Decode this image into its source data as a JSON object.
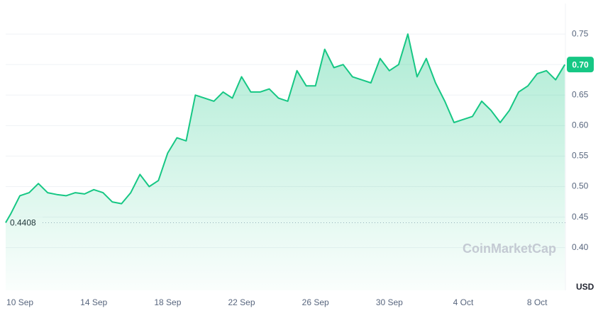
{
  "chart_data": {
    "type": "line",
    "categories": [
      null,
      null,
      "10 Sep",
      null,
      null,
      null,
      null,
      null,
      null,
      null,
      "14 Sep",
      null,
      null,
      null,
      null,
      null,
      null,
      null,
      "18 Sep",
      null,
      null,
      null,
      null,
      null,
      null,
      null,
      "22 Sep",
      null,
      null,
      null,
      null,
      null,
      null,
      null,
      "26 Sep",
      null,
      null,
      null,
      null,
      null,
      null,
      null,
      "30 Sep",
      null,
      null,
      null,
      null,
      null,
      null,
      null,
      "4 Oct",
      null,
      null,
      null,
      null,
      null,
      null,
      null,
      "8 Oct",
      null,
      null,
      null
    ],
    "series": [
      {
        "name": "USD",
        "color": "#16c784",
        "values": [
          0.441,
          0.455,
          0.485,
          0.49,
          0.505,
          0.49,
          0.487,
          0.485,
          0.49,
          0.488,
          0.495,
          0.49,
          0.475,
          0.472,
          0.49,
          0.52,
          0.5,
          0.51,
          0.555,
          0.58,
          0.575,
          0.65,
          0.645,
          0.64,
          0.655,
          0.645,
          0.68,
          0.655,
          0.655,
          0.66,
          0.645,
          0.64,
          0.69,
          0.665,
          0.665,
          0.725,
          0.695,
          0.7,
          0.68,
          0.675,
          0.67,
          0.71,
          0.69,
          0.7,
          0.75,
          0.68,
          0.71,
          0.67,
          0.64,
          0.605,
          0.61,
          0.615,
          0.64,
          0.625,
          0.605,
          0.625,
          0.655,
          0.665,
          0.685,
          0.69,
          0.675,
          0.7
        ]
      }
    ],
    "ylim": [
      0.33,
      0.8
    ],
    "yticks": [
      {
        "value": 0.4,
        "label": "0.40"
      },
      0.45,
      {
        "value": 0.5,
        "label": "0.50"
      },
      0.55,
      {
        "value": 0.6,
        "label": "0.60"
      },
      0.65,
      {
        "value": 0.7,
        "label": "0.70"
      },
      0.75
    ],
    "grid": true,
    "reference": {
      "value": 0.4408,
      "label": "0.4408"
    },
    "price_label": {
      "value": 0.7,
      "label": "0.70"
    },
    "y_axis_unit": "USD",
    "watermark": "CoinMarketCap"
  }
}
